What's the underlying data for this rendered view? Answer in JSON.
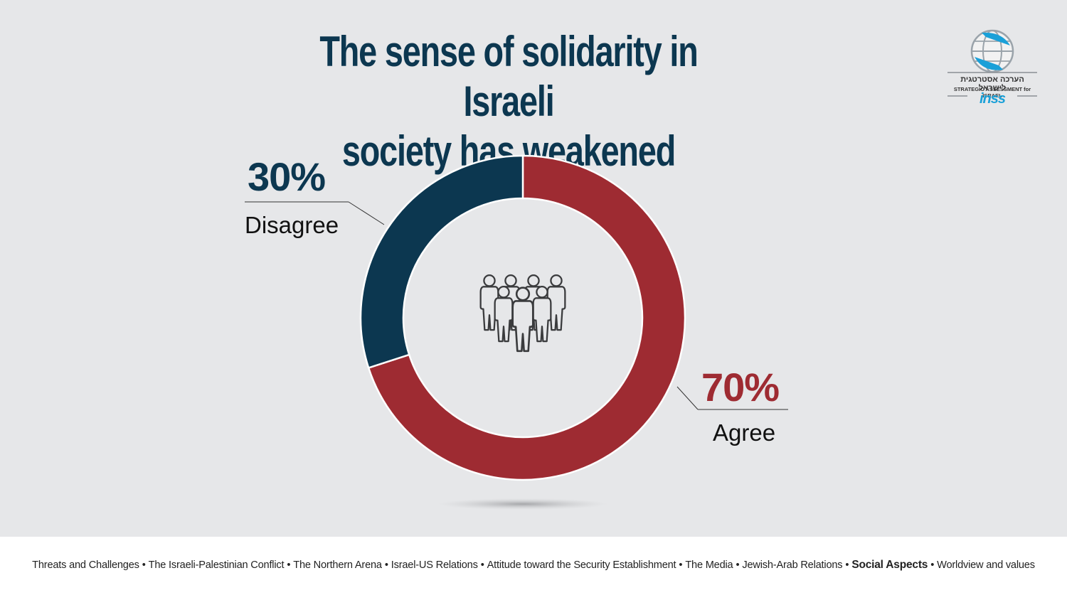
{
  "title_lines": [
    "The sense of solidarity in Israeli",
    "society has weakened"
  ],
  "chart_data": {
    "type": "pie",
    "variant": "donut",
    "title": "The sense of solidarity in Israeli society has weakened",
    "categories": [
      "Agree",
      "Disagree"
    ],
    "values": [
      70,
      30
    ],
    "value_labels": [
      "70%",
      "30%"
    ],
    "colors": [
      "#9e2b32",
      "#0c3750"
    ],
    "start": "12 o'clock",
    "direction": "clockwise"
  },
  "center_icon": "people-group-icon",
  "logo": {
    "hebrew": "הערכה אסטרטגית לישראל",
    "english": "STRATEGIC ASSESSMENT for ISRAEL",
    "brand": "inss",
    "icon": "globe-icon"
  },
  "footer": {
    "topics": [
      "Threats and Challenges",
      "The Israeli-Palestinian Conflict",
      "The Northern  Arena",
      "Israel-US Relations",
      "Attitude toward the Security Establishment",
      "The Media",
      "Jewish-Arab Relations",
      "Social Aspects",
      "Worldview and values"
    ],
    "active_topic": "Social Aspects",
    "separator": "•"
  }
}
